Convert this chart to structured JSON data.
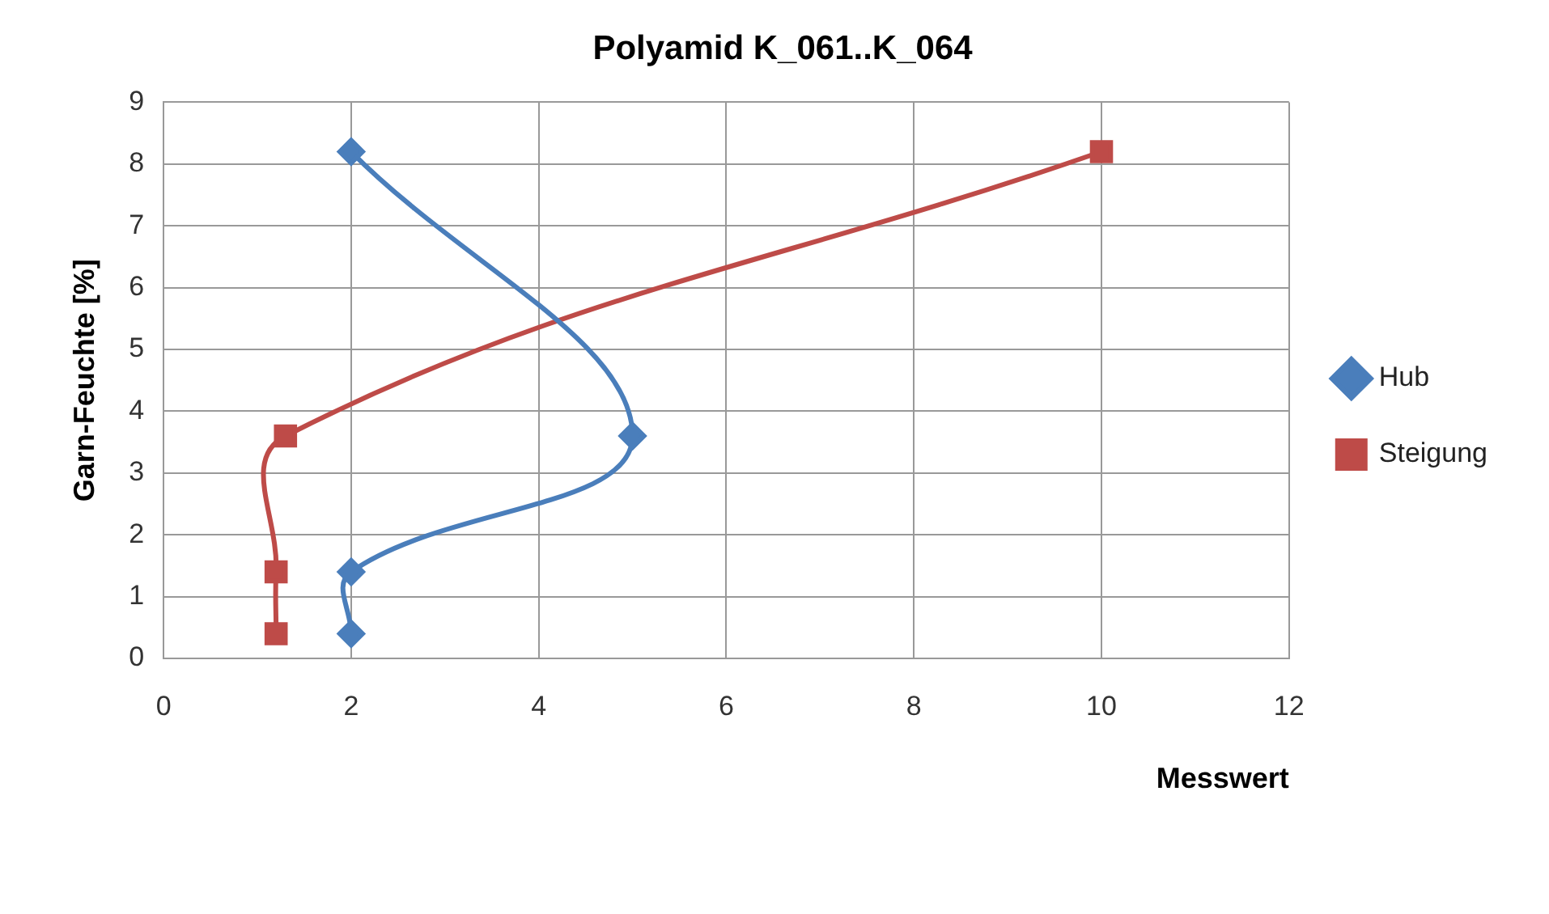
{
  "chart_data": {
    "type": "line",
    "title": "Polyamid K_061..K_064",
    "xlabel": "Messwert",
    "ylabel": "Garn-Feuchte [%]",
    "xlim": [
      0,
      12
    ],
    "xticks": [
      0,
      2,
      4,
      6,
      8,
      10,
      12
    ],
    "ylim": [
      0,
      9
    ],
    "yticks": [
      0,
      1,
      2,
      3,
      4,
      5,
      6,
      7,
      8,
      9
    ],
    "grid": true,
    "legend": "right",
    "series": [
      {
        "name": "Hub",
        "color": "#4a7ebb",
        "marker": "diamond",
        "x": [
          2,
          5,
          2,
          2
        ],
        "values": [
          8.2,
          3.6,
          1.4,
          0.4
        ]
      },
      {
        "name": "Steigung",
        "color": "#be4b48",
        "marker": "square",
        "x": [
          10,
          1.3,
          1.2,
          1.2
        ],
        "values": [
          8.2,
          3.6,
          1.4,
          0.4
        ]
      }
    ]
  }
}
